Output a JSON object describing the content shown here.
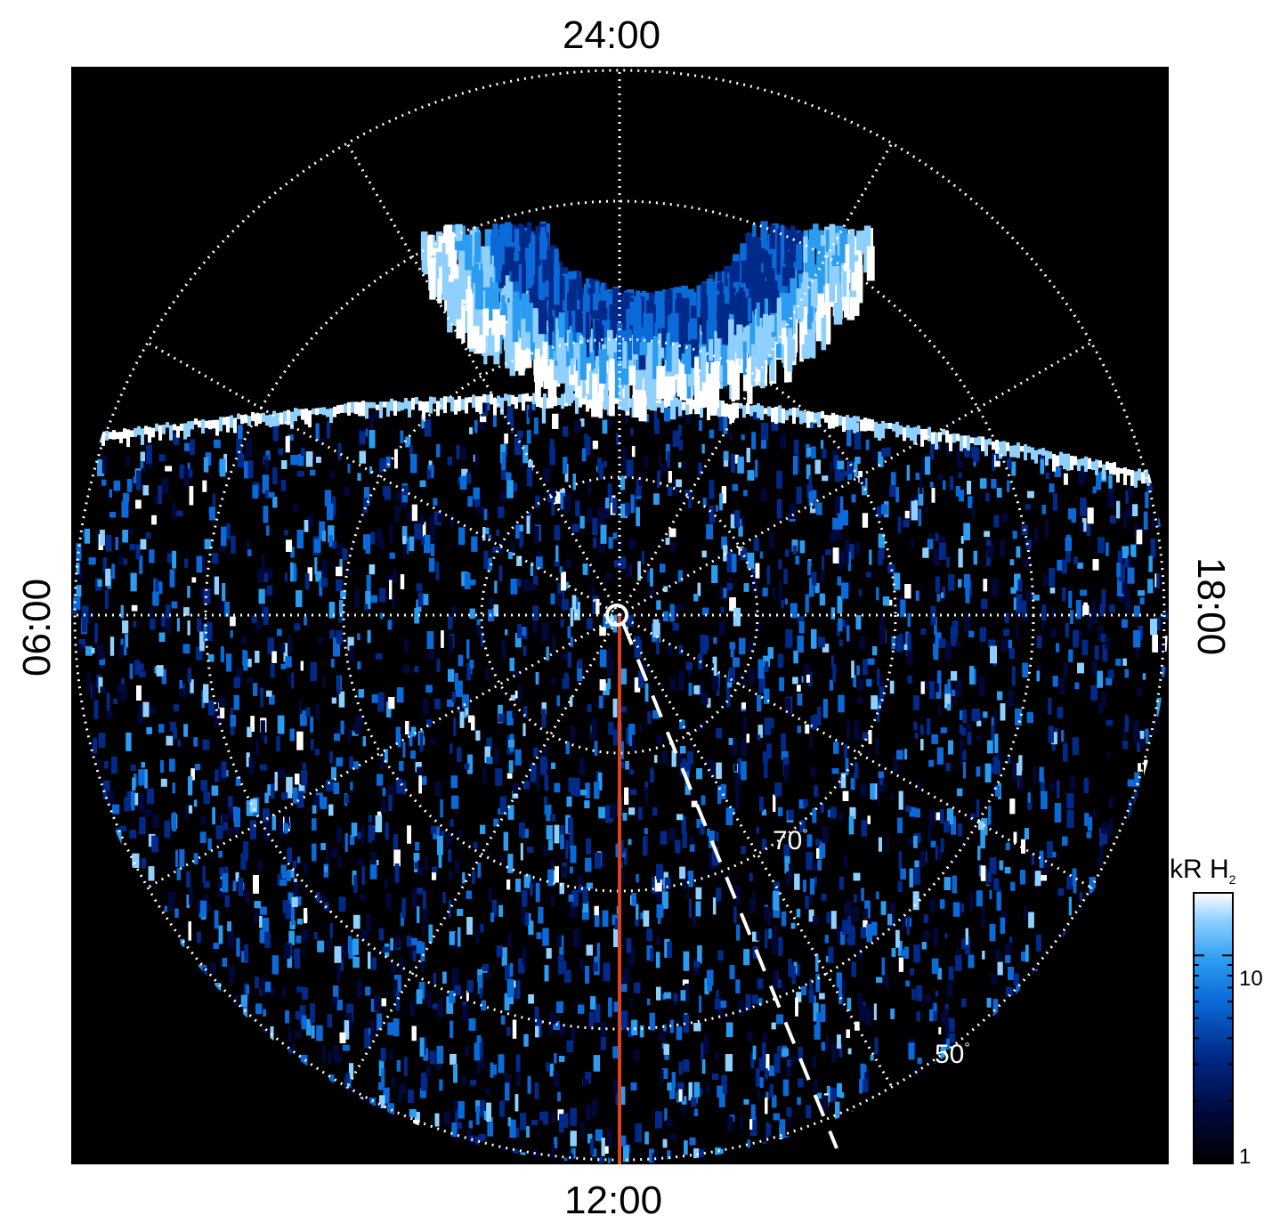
{
  "figure": {
    "local_time_labels": {
      "top": "24:00",
      "bottom": "12:00",
      "left": "06:00",
      "right": "18:00"
    },
    "latitude_labels": {
      "inner": "70",
      "outer": "50",
      "degree_symbol": "°"
    },
    "colorbar": {
      "title_main": "kR H",
      "title_sub": "2",
      "ticks": [
        "10",
        "1"
      ],
      "scale": "log",
      "colors": [
        "#000000",
        "#00083a",
        "#002a8a",
        "#0a6ad8",
        "#2c9cf0",
        "#8fd0ff",
        "#ffffff"
      ]
    },
    "colors": {
      "background": "#000000",
      "grid": "#ffffff",
      "meridian_line": "#e0401a",
      "emission_low": "#002a8a",
      "emission_mid": "#0a78e8",
      "emission_high": "#ffffff"
    },
    "icons": {
      "pole_marker": "circle-icon"
    }
  }
}
